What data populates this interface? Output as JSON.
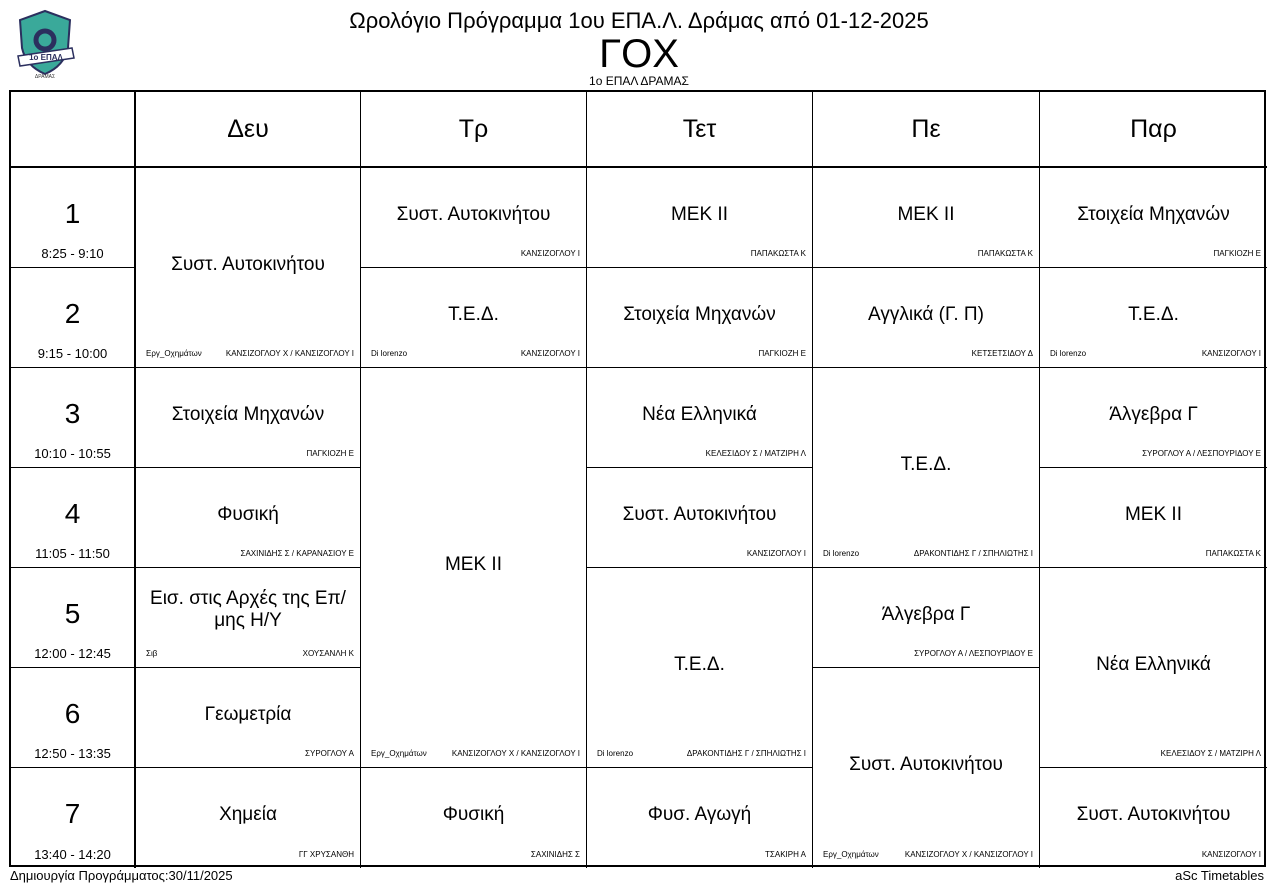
{
  "header": {
    "logo_text": "1ο ΕΠΑΛ ΔΡΑΜΑΣ",
    "title": "Ωρολόγιο Πρόγραμμα 1ου ΕΠΑ.Λ. Δράμας από 01-12-2025",
    "class_code": "ΓΟΧ",
    "school": "1ο ΕΠΑΛ ΔΡΑΜΑΣ"
  },
  "days": [
    "Δευ",
    "Τρ",
    "Τετ",
    "Πε",
    "Παρ"
  ],
  "periods": [
    {
      "num": "1",
      "time": "8:25 - 9:10"
    },
    {
      "num": "2",
      "time": "9:15 - 10:00"
    },
    {
      "num": "3",
      "time": "10:10 - 10:55"
    },
    {
      "num": "4",
      "time": "11:05 - 11:50"
    },
    {
      "num": "5",
      "time": "12:00 - 12:45"
    },
    {
      "num": "6",
      "time": "12:50 - 13:35"
    },
    {
      "num": "7",
      "time": "13:40 - 14:20"
    }
  ],
  "lessons": [
    {
      "day": 1,
      "start": 1,
      "span": 2,
      "subject": "Συστ. Αυτοκινήτου",
      "room": "Εργ_Οχημάτων",
      "teacher": "ΚΑΝΣΙΖΟΓΛΟΥ Χ / ΚΑΝΣΙΖΟΓΛΟΥ Ι"
    },
    {
      "day": 1,
      "start": 3,
      "span": 1,
      "subject": "Στοιχεία Μηχανών",
      "room": "",
      "teacher": "ΠΑΓΚΙΟΖΗ Ε"
    },
    {
      "day": 1,
      "start": 4,
      "span": 1,
      "subject": "Φυσική",
      "room": "",
      "teacher": "ΣΑΧΙΝΙΔΗΣ Σ / ΚΑΡΑΝΑΣΙΟΥ Ε"
    },
    {
      "day": 1,
      "start": 5,
      "span": 1,
      "subject": "Εισ. στις Αρχές της Επ/μης Η/Υ",
      "room": "Σιβ",
      "teacher": "ΧΟΥΣΑΝΛΗ Κ"
    },
    {
      "day": 1,
      "start": 6,
      "span": 1,
      "subject": "Γεωμετρία",
      "room": "",
      "teacher": "ΣΥΡΟΓΛΟΥ Α"
    },
    {
      "day": 1,
      "start": 7,
      "span": 1,
      "subject": "Χημεία",
      "room": "",
      "teacher": "ΓΓ ΧΡΥΣΑΝΘΗ"
    },
    {
      "day": 2,
      "start": 1,
      "span": 1,
      "subject": "Συστ. Αυτοκινήτου",
      "room": "",
      "teacher": "ΚΑΝΣΙΖΟΓΛΟΥ Ι"
    },
    {
      "day": 2,
      "start": 2,
      "span": 1,
      "subject": "Τ.Ε.Δ.",
      "room": "Di lorenzo",
      "teacher": "ΚΑΝΣΙΖΟΓΛΟΥ Ι"
    },
    {
      "day": 2,
      "start": 3,
      "span": 4,
      "subject": "ΜΕΚ ΙΙ",
      "room": "Εργ_Οχημάτων",
      "teacher": "ΚΑΝΣΙΖΟΓΛΟΥ Χ / ΚΑΝΣΙΖΟΓΛΟΥ Ι"
    },
    {
      "day": 2,
      "start": 7,
      "span": 1,
      "subject": "Φυσική",
      "room": "",
      "teacher": "ΣΑΧΙΝΙΔΗΣ Σ"
    },
    {
      "day": 3,
      "start": 1,
      "span": 1,
      "subject": "ΜΕΚ ΙΙ",
      "room": "",
      "teacher": "ΠΑΠΑΚΩΣΤΑ Κ"
    },
    {
      "day": 3,
      "start": 2,
      "span": 1,
      "subject": "Στοιχεία Μηχανών",
      "room": "",
      "teacher": "ΠΑΓΚΙΟΖΗ Ε"
    },
    {
      "day": 3,
      "start": 3,
      "span": 1,
      "subject": "Νέα Ελληνικά",
      "room": "",
      "teacher": "ΚΕΛΕΣΙΔΟΥ Σ / ΜΑΤΖΙΡΗ Λ"
    },
    {
      "day": 3,
      "start": 4,
      "span": 1,
      "subject": "Συστ. Αυτοκινήτου",
      "room": "",
      "teacher": "ΚΑΝΣΙΖΟΓΛΟΥ Ι"
    },
    {
      "day": 3,
      "start": 5,
      "span": 2,
      "subject": "Τ.Ε.Δ.",
      "room": "Di lorenzo",
      "teacher": "ΔΡΑΚΟΝΤΙΔΗΣ Γ / ΣΠΗΛΙΩΤΗΣ Ι"
    },
    {
      "day": 3,
      "start": 7,
      "span": 1,
      "subject": "Φυσ. Αγωγή",
      "room": "",
      "teacher": "ΤΣΑΚΙΡΗ Α"
    },
    {
      "day": 4,
      "start": 1,
      "span": 1,
      "subject": "ΜΕΚ ΙΙ",
      "room": "",
      "teacher": "ΠΑΠΑΚΩΣΤΑ Κ"
    },
    {
      "day": 4,
      "start": 2,
      "span": 1,
      "subject": "Αγγλικά (Γ. Π)",
      "room": "",
      "teacher": "ΚΕΤΣΕΤΣΙΔΟΥ Δ"
    },
    {
      "day": 4,
      "start": 3,
      "span": 2,
      "subject": "Τ.Ε.Δ.",
      "room": "Di lorenzo",
      "teacher": "ΔΡΑΚΟΝΤΙΔΗΣ Γ / ΣΠΗΛΙΩΤΗΣ Ι"
    },
    {
      "day": 4,
      "start": 5,
      "span": 1,
      "subject": "Άλγεβρα Γ",
      "room": "",
      "teacher": "ΣΥΡΟΓΛΟΥ Α / ΛΕΣΠΟΥΡΙΔΟΥ Ε"
    },
    {
      "day": 4,
      "start": 6,
      "span": 2,
      "subject": "Συστ. Αυτοκινήτου",
      "room": "Εργ_Οχημάτων",
      "teacher": "ΚΑΝΣΙΖΟΓΛΟΥ Χ / ΚΑΝΣΙΖΟΓΛΟΥ Ι"
    },
    {
      "day": 5,
      "start": 1,
      "span": 1,
      "subject": "Στοιχεία Μηχανών",
      "room": "",
      "teacher": "ΠΑΓΚΙΟΖΗ Ε"
    },
    {
      "day": 5,
      "start": 2,
      "span": 1,
      "subject": "Τ.Ε.Δ.",
      "room": "Di lorenzo",
      "teacher": "ΚΑΝΣΙΖΟΓΛΟΥ Ι"
    },
    {
      "day": 5,
      "start": 3,
      "span": 1,
      "subject": "Άλγεβρα Γ",
      "room": "",
      "teacher": "ΣΥΡΟΓΛΟΥ Α / ΛΕΣΠΟΥΡΙΔΟΥ Ε"
    },
    {
      "day": 5,
      "start": 4,
      "span": 1,
      "subject": "ΜΕΚ ΙΙ",
      "room": "",
      "teacher": "ΠΑΠΑΚΩΣΤΑ Κ"
    },
    {
      "day": 5,
      "start": 5,
      "span": 2,
      "subject": "Νέα Ελληνικά",
      "room": "",
      "teacher": "ΚΕΛΕΣΙΔΟΥ Σ / ΜΑΤΖΙΡΗ Λ"
    },
    {
      "day": 5,
      "start": 7,
      "span": 1,
      "subject": "Συστ. Αυτοκινήτου",
      "room": "",
      "teacher": "ΚΑΝΣΙΖΟΓΛΟΥ Ι"
    }
  ],
  "footer": {
    "created": "Δημιουργία Προγράμματος:30/11/2025",
    "brand": "aSc Timetables"
  },
  "colors": {
    "logo_teal": "#3aa99a",
    "logo_navy": "#2b2f5e"
  }
}
